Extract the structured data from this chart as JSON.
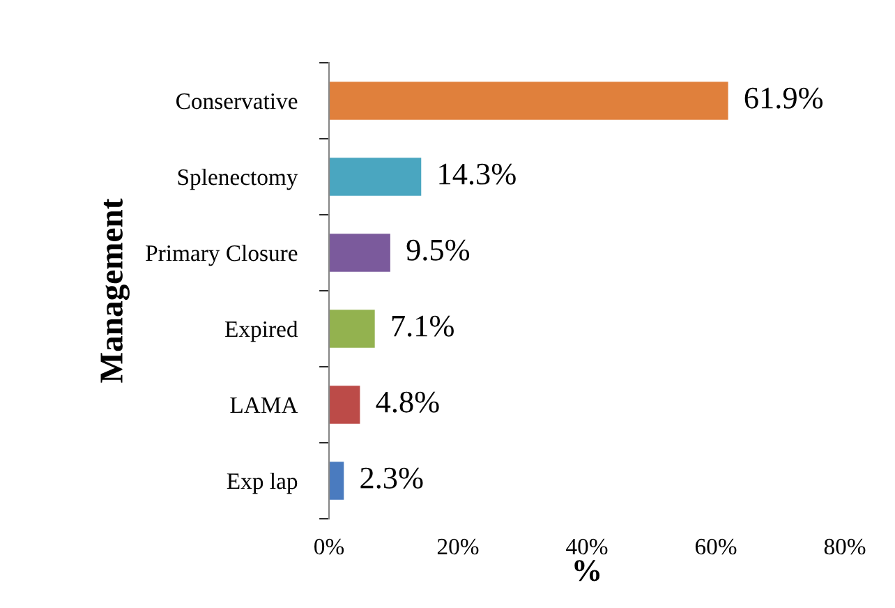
{
  "chart_data": {
    "type": "bar",
    "orientation": "horizontal",
    "ylabel": "Management",
    "xlabel": "%",
    "categories": [
      "Conservative",
      "Splenectomy",
      "Primary Closure",
      "Expired",
      "LAMA",
      "Exp lap"
    ],
    "values": [
      61.9,
      14.3,
      9.5,
      7.1,
      4.8,
      2.3
    ],
    "colors": [
      "#e0803c",
      "#4aa6c0",
      "#7b5a9c",
      "#93b24f",
      "#bc4b48",
      "#4a7bbf"
    ],
    "value_labels": [
      "61.9%",
      "14.3%",
      "9.5%",
      "7.1%",
      "4.8%",
      "2.3%"
    ],
    "xlim": [
      0,
      80
    ],
    "xticks": [
      {
        "value": 0,
        "label": "0%"
      },
      {
        "value": 20,
        "label": "20%"
      },
      {
        "value": 40,
        "label": "40%"
      },
      {
        "value": 60,
        "label": "60%"
      },
      {
        "value": 80,
        "label": "80%"
      }
    ],
    "grid": false,
    "legend": false
  }
}
